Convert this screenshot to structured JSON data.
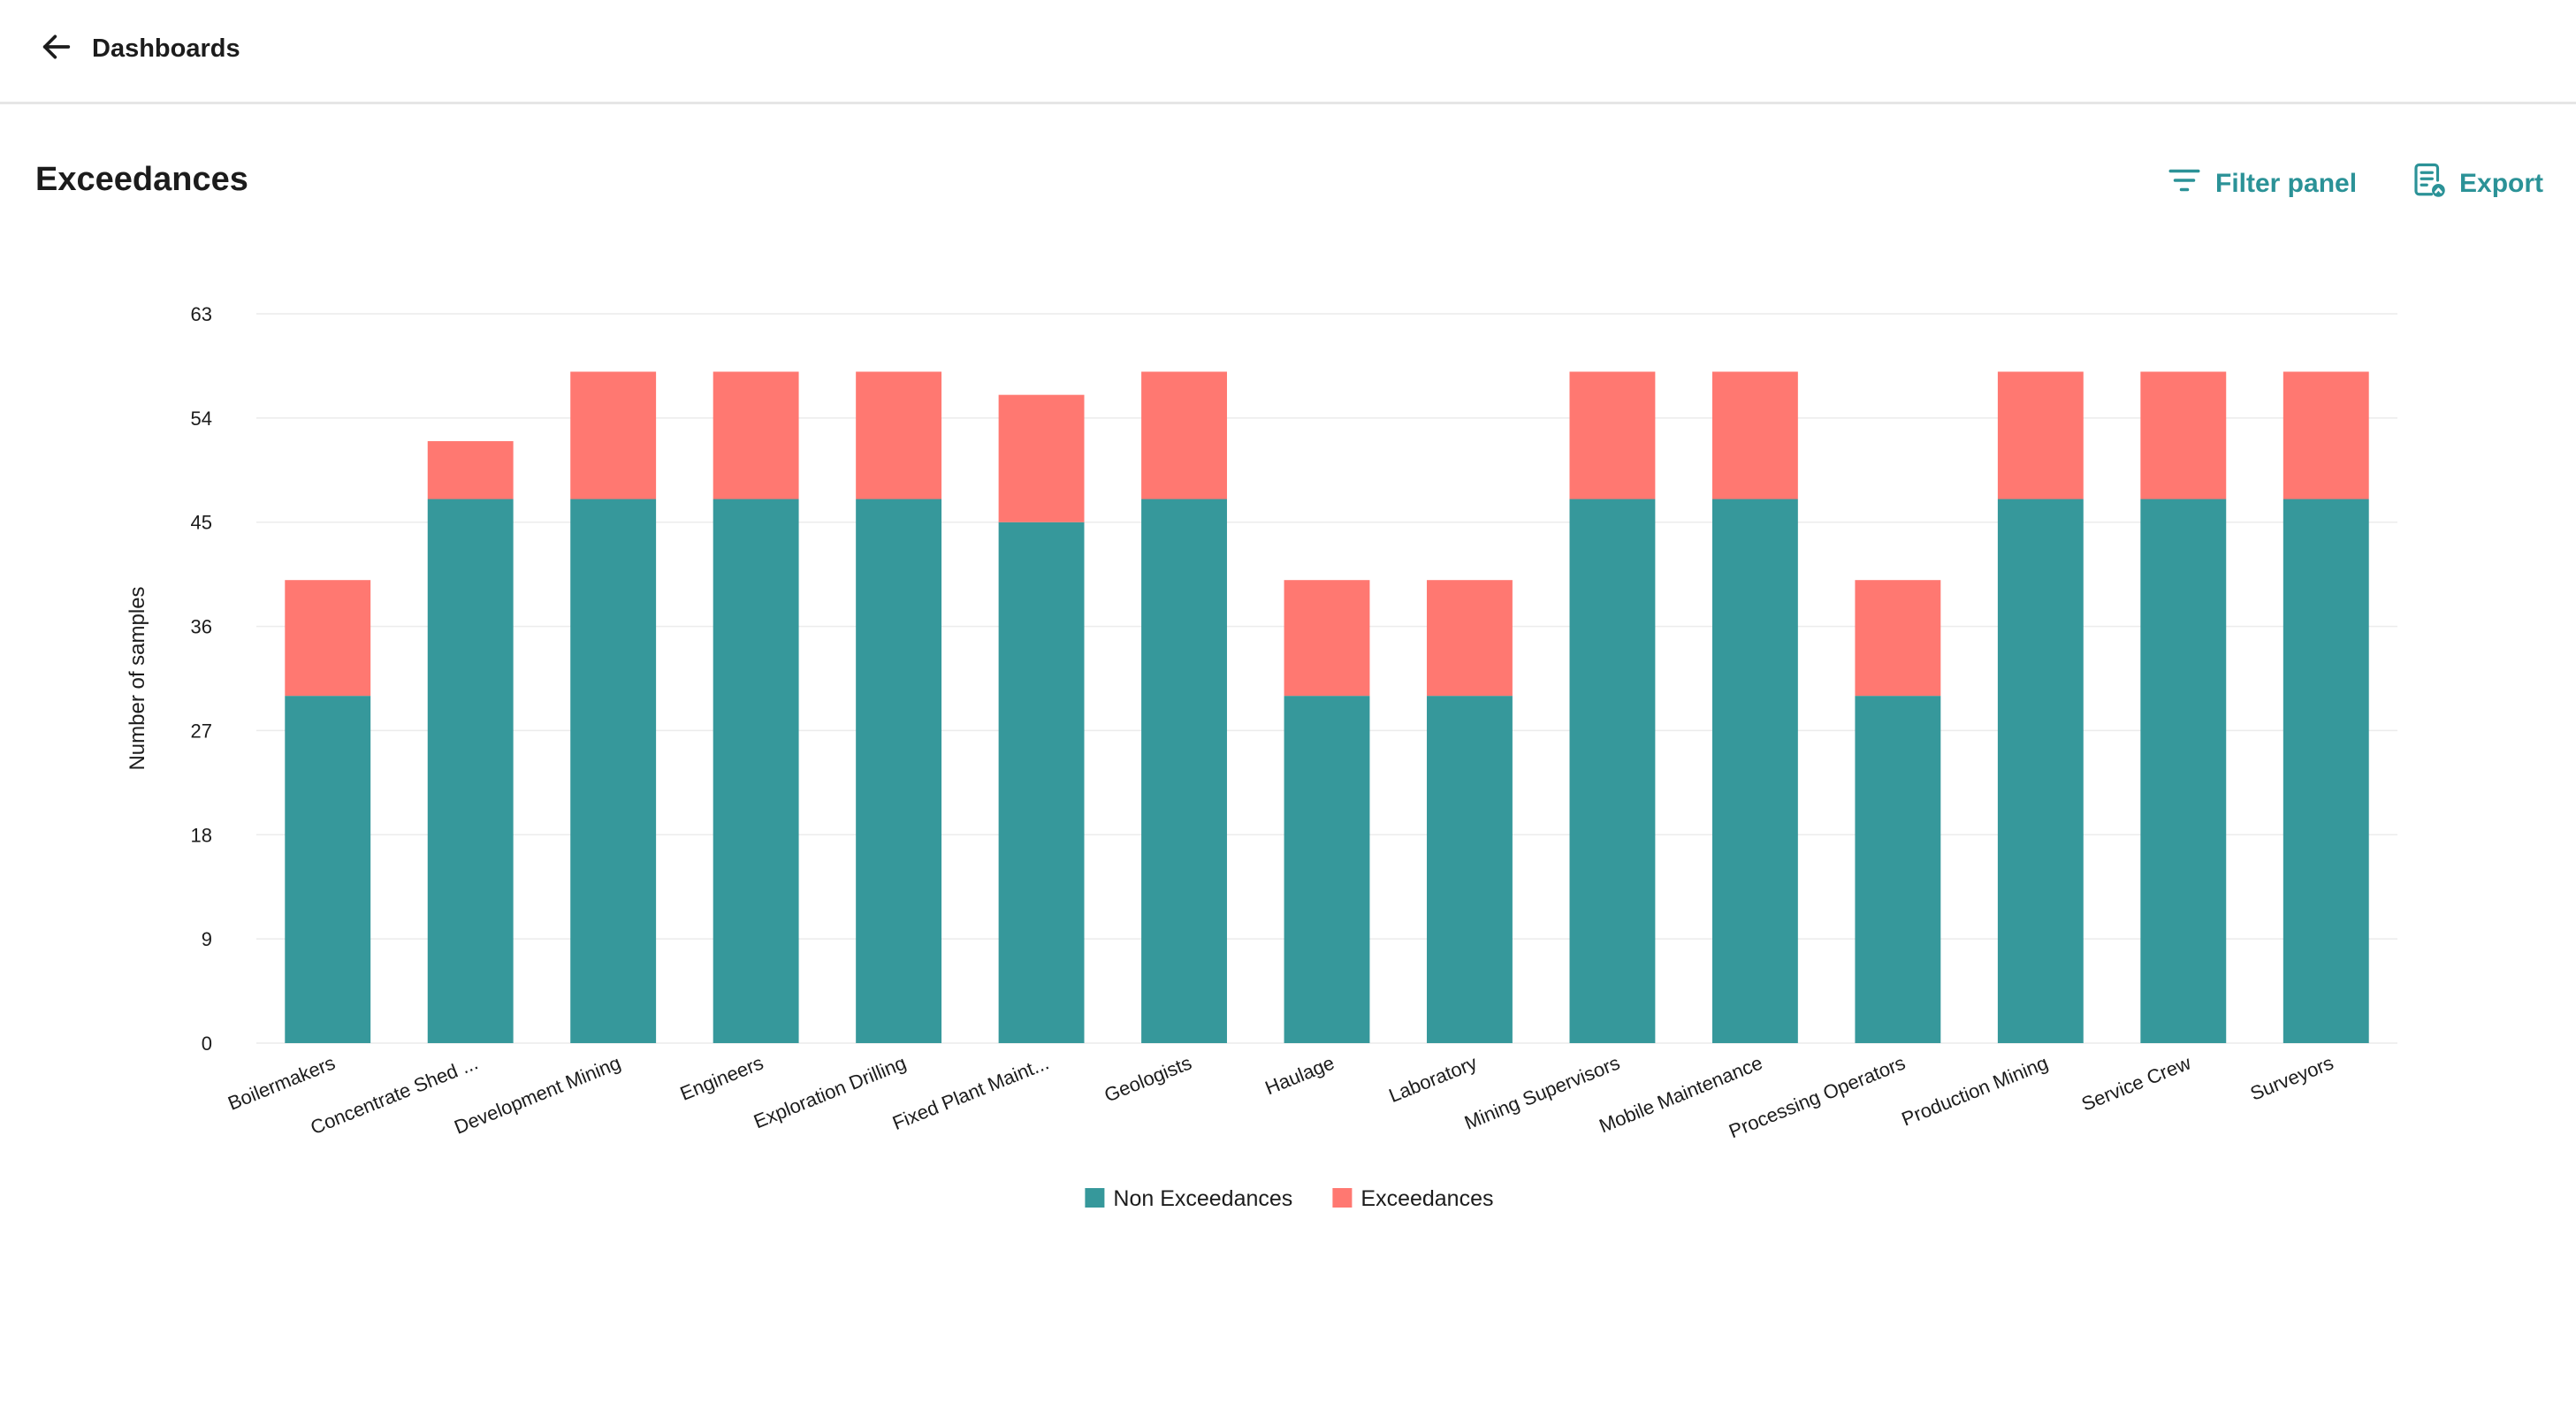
{
  "nav": {
    "back_label": "Dashboards",
    "back_icon": "arrow-left-icon"
  },
  "page": {
    "title": "Exceedances"
  },
  "actions": {
    "filter_label": "Filter panel",
    "filter_icon": "filter-icon",
    "export_label": "Export",
    "export_icon": "export-document-icon",
    "color": "#2b9297"
  },
  "chart_data": {
    "type": "bar",
    "stacked": true,
    "ylabel": "Number of samples",
    "ylim": [
      0,
      63
    ],
    "yticks": [
      0,
      9,
      18,
      27,
      36,
      45,
      54,
      63
    ],
    "grid": true,
    "legend_position": "bottom-center",
    "categories": [
      "Boilermakers",
      "Concentrate Shed ...",
      "Development Mining",
      "Engineers",
      "Exploration Drilling",
      "Fixed Plant Maint...",
      "Geologists",
      "Haulage",
      "Laboratory",
      "Mining Supervisors",
      "Mobile Maintenance",
      "Processing Operators",
      "Production Mining",
      "Service Crew",
      "Surveyors"
    ],
    "series": [
      {
        "name": "Non Exceedances",
        "color": "#36989b",
        "values": [
          30,
          47,
          47,
          47,
          47,
          45,
          47,
          30,
          30,
          47,
          47,
          30,
          47,
          47,
          47
        ]
      },
      {
        "name": "Exceedances",
        "color": "#ff7871",
        "values": [
          10,
          5,
          11,
          11,
          11,
          11,
          11,
          10,
          10,
          11,
          11,
          10,
          11,
          11,
          11
        ]
      }
    ]
  }
}
